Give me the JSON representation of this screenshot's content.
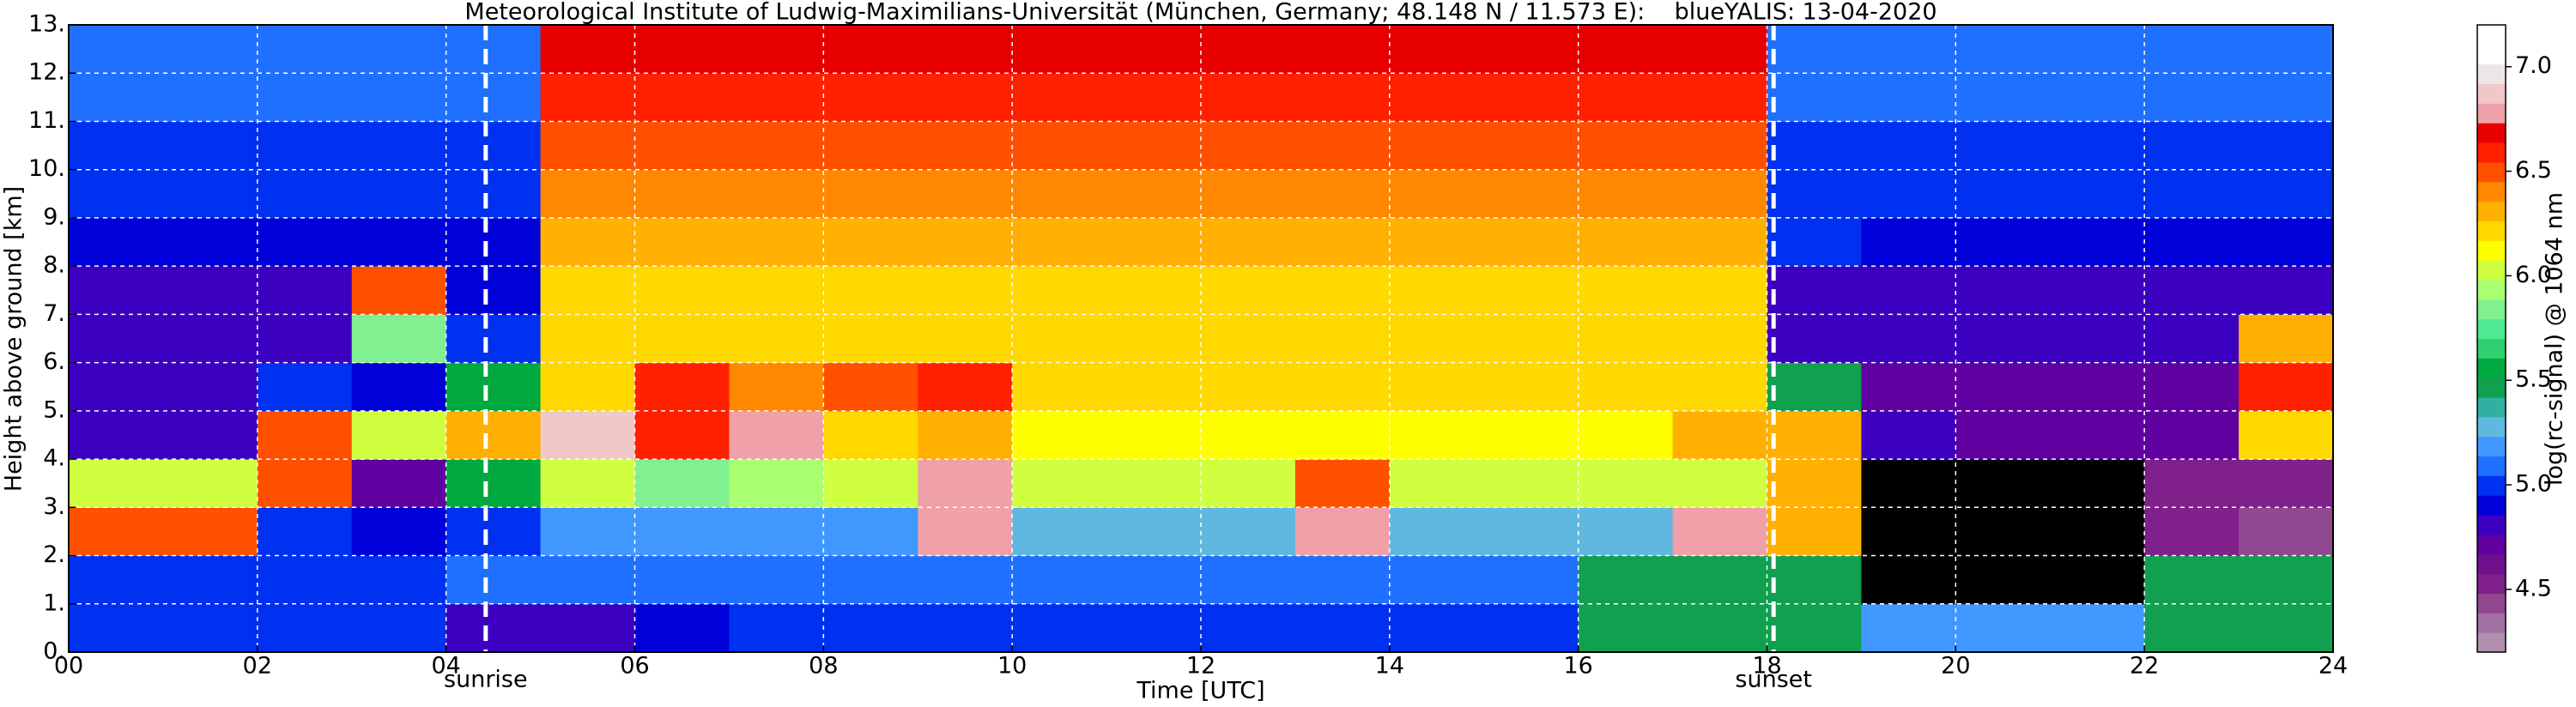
{
  "chart_data": {
    "type": "heatmap",
    "title": "Meteorological Institute of Ludwig-Maximilians-Universität (München, Germany; 48.148 N / 11.573 E):    blueYALIS: 13-04-2020",
    "x_label": "Time [UTC]",
    "y_label": "Height above ground [km]",
    "colorbar_label": "log(rc-signal) @ 1064 nm",
    "xlim": [
      0,
      24
    ],
    "ylim": [
      0,
      13
    ],
    "xticks": [
      {
        "value": 0,
        "label": "00"
      },
      {
        "value": 2,
        "label": "02"
      },
      {
        "value": 4,
        "label": "04"
      },
      {
        "value": 6,
        "label": "06"
      },
      {
        "value": 8,
        "label": "08"
      },
      {
        "value": 10,
        "label": "10"
      },
      {
        "value": 12,
        "label": "12"
      },
      {
        "value": 14,
        "label": "14"
      },
      {
        "value": 16,
        "label": "16"
      },
      {
        "value": 18,
        "label": "18"
      },
      {
        "value": 20,
        "label": "20"
      },
      {
        "value": 22,
        "label": "22"
      },
      {
        "value": 24,
        "label": "24"
      }
    ],
    "yticks": [
      {
        "value": 0,
        "label": "0."
      },
      {
        "value": 1,
        "label": "1."
      },
      {
        "value": 2,
        "label": "2."
      },
      {
        "value": 3,
        "label": "3."
      },
      {
        "value": 4,
        "label": "4."
      },
      {
        "value": 5,
        "label": "5."
      },
      {
        "value": 6,
        "label": "6."
      },
      {
        "value": 7,
        "label": "7."
      },
      {
        "value": 8,
        "label": "8."
      },
      {
        "value": 9,
        "label": "9."
      },
      {
        "value": 10,
        "label": "10."
      },
      {
        "value": 11,
        "label": "11."
      },
      {
        "value": 12,
        "label": "12."
      },
      {
        "value": 13,
        "label": "13."
      }
    ],
    "grid": true,
    "clim": [
      4.2,
      7.2
    ],
    "cticks": [
      4.5,
      {
        "value": 5,
        "label": "5.0"
      },
      5.5,
      {
        "value": 6,
        "label": "6.0"
      },
      6.5,
      {
        "value": 7,
        "label": "7.0"
      }
    ],
    "under_color": "#000000",
    "colormap": [
      "#b08fb0",
      "#a070a0",
      "#904890",
      "#80208a",
      "#70108f",
      "#6000a0",
      "#3c00c0",
      "#0000d8",
      "#0030f0",
      "#2070ff",
      "#4098ff",
      "#60b8e0",
      "#30b0a0",
      "#10a050",
      "#00a840",
      "#30d070",
      "#50e890",
      "#80f090",
      "#a8ff70",
      "#d0ff40",
      "#ffff00",
      "#ffd800",
      "#ffb000",
      "#ff8800",
      "#ff5000",
      "#ff2000",
      "#e80000",
      "#f0a0a8",
      "#f0c8c8",
      "#ece6e6",
      "#ffffff",
      "#ffffff"
    ],
    "annotations": [
      {
        "label": "sunrise",
        "x": 4.42
      },
      {
        "label": "sunset",
        "x": 18.07
      }
    ],
    "z": [
      [
        5.0,
        5.0,
        5.0,
        5.0,
        4.8,
        4.8,
        4.9,
        5.0,
        5.0,
        5.0,
        5.0,
        5.0,
        5.0,
        5.0,
        5.0,
        5.0,
        5.5,
        5.5,
        5.5,
        5.2,
        5.2,
        5.2,
        5.5,
        5.5
      ],
      [
        5.0,
        5.0,
        5.0,
        5.0,
        5.1,
        5.1,
        5.1,
        5.1,
        5.1,
        5.1,
        5.1,
        5.1,
        5.1,
        5.1,
        5.1,
        5.1,
        5.5,
        5.5,
        5.5,
        4.0,
        4.0,
        4.0,
        5.5,
        5.5
      ],
      [
        6.5,
        6.5,
        5.0,
        4.9,
        5.0,
        5.2,
        5.2,
        5.2,
        5.2,
        6.8,
        5.3,
        5.3,
        5.3,
        6.8,
        5.3,
        5.3,
        5.3,
        6.8,
        6.3,
        4.0,
        4.0,
        4.0,
        4.5,
        4.4
      ],
      [
        6.0,
        6.0,
        6.5,
        4.7,
        5.6,
        6.0,
        5.8,
        5.9,
        6.0,
        6.8,
        6.0,
        6.0,
        6.0,
        6.5,
        6.0,
        6.0,
        6.0,
        6.0,
        6.3,
        4.0,
        4.0,
        4.0,
        4.5,
        4.5
      ],
      [
        4.8,
        4.8,
        6.5,
        6.0,
        6.3,
        6.9,
        6.6,
        6.8,
        6.2,
        6.3,
        6.1,
        6.1,
        6.1,
        6.1,
        6.1,
        6.1,
        6.1,
        6.3,
        6.3,
        4.8,
        4.7,
        4.7,
        4.7,
        6.2
      ],
      [
        4.8,
        4.8,
        5.0,
        4.9,
        5.6,
        6.2,
        6.6,
        6.4,
        6.5,
        6.6,
        6.2,
        6.2,
        6.2,
        6.2,
        6.2,
        6.2,
        6.2,
        6.2,
        5.5,
        4.7,
        4.7,
        4.7,
        4.7,
        6.6
      ],
      [
        4.8,
        4.8,
        4.8,
        5.8,
        5.0,
        6.2,
        6.2,
        6.2,
        6.2,
        6.2,
        6.2,
        6.2,
        6.2,
        6.2,
        6.2,
        6.2,
        6.2,
        6.2,
        4.8,
        4.8,
        4.8,
        4.8,
        4.8,
        6.3
      ],
      [
        4.8,
        4.8,
        4.8,
        6.5,
        4.9,
        6.2,
        6.2,
        6.2,
        6.2,
        6.2,
        6.2,
        6.2,
        6.2,
        6.2,
        6.2,
        6.2,
        6.2,
        6.2,
        4.8,
        4.8,
        4.8,
        4.8,
        4.8,
        4.8
      ],
      [
        4.9,
        4.9,
        4.9,
        4.9,
        4.9,
        6.3,
        6.3,
        6.3,
        6.3,
        6.3,
        6.3,
        6.3,
        6.3,
        6.3,
        6.3,
        6.3,
        6.3,
        6.3,
        5.0,
        4.9,
        4.9,
        4.9,
        4.9,
        4.9
      ],
      [
        5.0,
        5.0,
        5.0,
        5.0,
        5.0,
        6.4,
        6.4,
        6.4,
        6.4,
        6.4,
        6.4,
        6.4,
        6.4,
        6.4,
        6.4,
        6.4,
        6.4,
        6.4,
        5.0,
        5.0,
        5.0,
        5.0,
        5.0,
        5.0
      ],
      [
        5.0,
        5.0,
        5.0,
        5.0,
        5.0,
        6.5,
        6.5,
        6.5,
        6.5,
        6.5,
        6.5,
        6.5,
        6.5,
        6.5,
        6.5,
        6.5,
        6.5,
        6.5,
        5.0,
        5.0,
        5.0,
        5.0,
        5.0,
        5.0
      ],
      [
        5.1,
        5.1,
        5.1,
        5.1,
        5.1,
        6.6,
        6.6,
        6.6,
        6.6,
        6.6,
        6.6,
        6.6,
        6.6,
        6.6,
        6.6,
        6.6,
        6.6,
        6.6,
        5.1,
        5.1,
        5.1,
        5.1,
        5.1,
        5.1
      ],
      [
        5.1,
        5.1,
        5.1,
        5.1,
        5.1,
        6.7,
        6.7,
        6.7,
        6.7,
        6.7,
        6.7,
        6.7,
        6.7,
        6.7,
        6.7,
        6.7,
        6.7,
        6.7,
        5.1,
        5.1,
        5.1,
        5.1,
        5.1,
        5.1
      ]
    ]
  }
}
